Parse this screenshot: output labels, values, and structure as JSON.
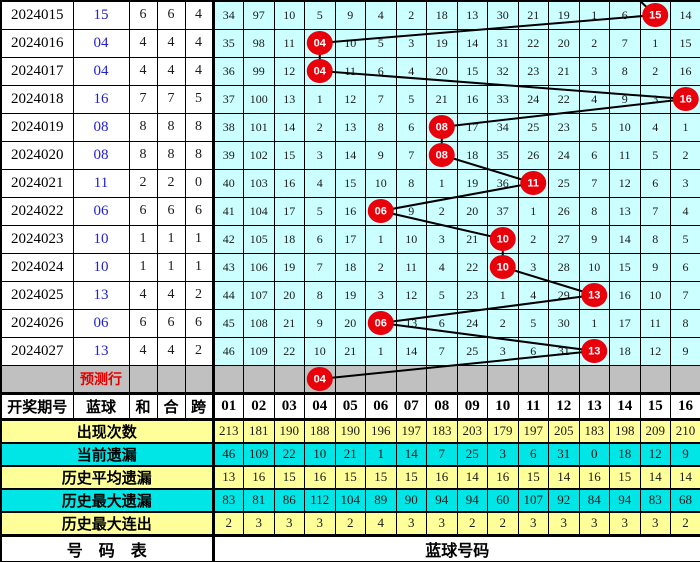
{
  "meta": {
    "grid_cell_bg": "#ccffff",
    "stat_yellow_bg": "#ffff99",
    "stat_cyan_bg": "#00e6e6",
    "prediction_row_bg": "#c0c0c0",
    "circle_red": "#e8000b",
    "ball_blue": "#2222cc",
    "trend_line_color": "#000000"
  },
  "columns": {
    "period": "开奖期号",
    "ball": "蓝球",
    "sum": "和",
    "he": "合",
    "span": "跨",
    "numbers": [
      "01",
      "02",
      "03",
      "04",
      "05",
      "06",
      "07",
      "08",
      "09",
      "10",
      "11",
      "12",
      "13",
      "14",
      "15",
      "16"
    ]
  },
  "main": {
    "top_entry_col": 14,
    "rows": [
      {
        "period": "2024015",
        "ball": "15",
        "ball_col": 15,
        "sum": "6",
        "he": "6",
        "span": "4",
        "cells": [
          "34",
          "97",
          "10",
          "5",
          "9",
          "4",
          "2",
          "18",
          "13",
          "30",
          "21",
          "19",
          "1",
          "6",
          "",
          "14"
        ]
      },
      {
        "period": "2024016",
        "ball": "04",
        "ball_col": 4,
        "sum": "4",
        "he": "4",
        "span": "4",
        "cells": [
          "35",
          "98",
          "11",
          "",
          "10",
          "5",
          "3",
          "19",
          "14",
          "31",
          "22",
          "20",
          "2",
          "7",
          "1",
          "15"
        ]
      },
      {
        "period": "2024017",
        "ball": "04",
        "ball_col": 4,
        "sum": "4",
        "he": "4",
        "span": "4",
        "cells": [
          "36",
          "99",
          "12",
          "",
          "11",
          "6",
          "4",
          "20",
          "15",
          "32",
          "23",
          "21",
          "3",
          "8",
          "2",
          "16"
        ]
      },
      {
        "period": "2024018",
        "ball": "16",
        "ball_col": 16,
        "sum": "7",
        "he": "7",
        "span": "5",
        "cells": [
          "37",
          "100",
          "13",
          "1",
          "12",
          "7",
          "5",
          "21",
          "16",
          "33",
          "24",
          "22",
          "4",
          "9",
          "3",
          ""
        ]
      },
      {
        "period": "2024019",
        "ball": "08",
        "ball_col": 8,
        "sum": "8",
        "he": "8",
        "span": "8",
        "cells": [
          "38",
          "101",
          "14",
          "2",
          "13",
          "8",
          "6",
          "",
          "17",
          "34",
          "25",
          "23",
          "5",
          "10",
          "4",
          "1"
        ]
      },
      {
        "period": "2024020",
        "ball": "08",
        "ball_col": 8,
        "sum": "8",
        "he": "8",
        "span": "8",
        "cells": [
          "39",
          "102",
          "15",
          "3",
          "14",
          "9",
          "7",
          "",
          "18",
          "35",
          "26",
          "24",
          "6",
          "11",
          "5",
          "2"
        ]
      },
      {
        "period": "2024021",
        "ball": "11",
        "ball_col": 11,
        "sum": "2",
        "he": "2",
        "span": "0",
        "cells": [
          "40",
          "103",
          "16",
          "4",
          "15",
          "10",
          "8",
          "1",
          "19",
          "36",
          "",
          "25",
          "7",
          "12",
          "6",
          "3"
        ]
      },
      {
        "period": "2024022",
        "ball": "06",
        "ball_col": 6,
        "sum": "6",
        "he": "6",
        "span": "6",
        "cells": [
          "41",
          "104",
          "17",
          "5",
          "16",
          "",
          "9",
          "2",
          "20",
          "37",
          "1",
          "26",
          "8",
          "13",
          "7",
          "4"
        ]
      },
      {
        "period": "2024023",
        "ball": "10",
        "ball_col": 10,
        "sum": "1",
        "he": "1",
        "span": "1",
        "cells": [
          "42",
          "105",
          "18",
          "6",
          "17",
          "1",
          "10",
          "3",
          "21",
          "",
          "2",
          "27",
          "9",
          "14",
          "8",
          "5"
        ]
      },
      {
        "period": "2024024",
        "ball": "10",
        "ball_col": 10,
        "sum": "1",
        "he": "1",
        "span": "1",
        "cells": [
          "43",
          "106",
          "19",
          "7",
          "18",
          "2",
          "11",
          "4",
          "22",
          "",
          "3",
          "28",
          "10",
          "15",
          "9",
          "6"
        ]
      },
      {
        "period": "2024025",
        "ball": "13",
        "ball_col": 13,
        "sum": "4",
        "he": "4",
        "span": "2",
        "cells": [
          "44",
          "107",
          "20",
          "8",
          "19",
          "3",
          "12",
          "5",
          "23",
          "1",
          "4",
          "29",
          "",
          "16",
          "10",
          "7"
        ]
      },
      {
        "period": "2024026",
        "ball": "06",
        "ball_col": 6,
        "sum": "6",
        "he": "6",
        "span": "6",
        "cells": [
          "45",
          "108",
          "21",
          "9",
          "20",
          "",
          "13",
          "6",
          "24",
          "2",
          "5",
          "30",
          "1",
          "17",
          "11",
          "8"
        ]
      },
      {
        "period": "2024027",
        "ball": "13",
        "ball_col": 13,
        "sum": "4",
        "he": "4",
        "span": "2",
        "cells": [
          "46",
          "109",
          "22",
          "10",
          "21",
          "1",
          "14",
          "7",
          "25",
          "3",
          "6",
          "31",
          "",
          "18",
          "12",
          "9"
        ]
      },
      {
        "period": "",
        "ball": "04",
        "ball_col": 4,
        "sum": "",
        "he": "",
        "span": "",
        "prediction": true,
        "label": "预测行",
        "cells": [
          "",
          "",
          "",
          "",
          "",
          "",
          "",
          "",
          "",
          "",
          "",
          "",
          "",
          "",
          "",
          ""
        ]
      }
    ]
  },
  "stats": {
    "rows": [
      {
        "label": "出现次数",
        "bg": "yellow",
        "values": [
          "213",
          "181",
          "190",
          "188",
          "190",
          "196",
          "197",
          "183",
          "203",
          "179",
          "197",
          "205",
          "183",
          "198",
          "209",
          "210"
        ]
      },
      {
        "label": "当前遗漏",
        "bg": "cyan",
        "values": [
          "46",
          "109",
          "22",
          "10",
          "21",
          "1",
          "14",
          "7",
          "25",
          "3",
          "6",
          "31",
          "0",
          "18",
          "12",
          "9"
        ]
      },
      {
        "label": "历史平均遗漏",
        "bg": "yellow",
        "values": [
          "13",
          "16",
          "15",
          "16",
          "15",
          "15",
          "15",
          "16",
          "14",
          "16",
          "15",
          "14",
          "16",
          "15",
          "14",
          "14"
        ]
      },
      {
        "label": "历史最大遗漏",
        "bg": "cyan",
        "values": [
          "83",
          "81",
          "86",
          "112",
          "104",
          "89",
          "90",
          "94",
          "94",
          "60",
          "107",
          "92",
          "84",
          "94",
          "83",
          "68"
        ]
      },
      {
        "label": "历史最大连出",
        "bg": "yellow",
        "values": [
          "2",
          "3",
          "3",
          "3",
          "2",
          "4",
          "3",
          "3",
          "2",
          "2",
          "3",
          "3",
          "3",
          "3",
          "3",
          "2"
        ]
      }
    ]
  },
  "footer": {
    "left": "号　码　表",
    "right": "蓝球号码"
  },
  "chart_data": {
    "type": "line",
    "x": [
      "2024015",
      "2024016",
      "2024017",
      "2024018",
      "2024019",
      "2024020",
      "2024021",
      "2024022",
      "2024023",
      "2024024",
      "2024025",
      "2024026",
      "2024027",
      "预测行"
    ],
    "series": [
      {
        "name": "蓝球",
        "values": [
          15,
          4,
          4,
          16,
          8,
          8,
          11,
          6,
          10,
          10,
          13,
          6,
          13,
          4
        ]
      }
    ],
    "ylim": [
      1,
      16
    ],
    "legend_position": "none",
    "grid": true,
    "stats_table": {
      "row_labels": [
        "出现次数",
        "当前遗漏",
        "历史平均遗漏",
        "历史最大遗漏",
        "历史最大连出"
      ],
      "column_labels": [
        "01",
        "02",
        "03",
        "04",
        "05",
        "06",
        "07",
        "08",
        "09",
        "10",
        "11",
        "12",
        "13",
        "14",
        "15",
        "16"
      ],
      "values": [
        [
          213,
          181,
          190,
          188,
          190,
          196,
          197,
          183,
          203,
          179,
          197,
          205,
          183,
          198,
          209,
          210
        ],
        [
          46,
          109,
          22,
          10,
          21,
          1,
          14,
          7,
          25,
          3,
          6,
          31,
          0,
          18,
          12,
          9
        ],
        [
          13,
          16,
          15,
          16,
          15,
          15,
          15,
          16,
          14,
          16,
          15,
          14,
          16,
          15,
          14,
          14
        ],
        [
          83,
          81,
          86,
          112,
          104,
          89,
          90,
          94,
          94,
          60,
          107,
          92,
          84,
          94,
          83,
          68
        ],
        [
          2,
          3,
          3,
          3,
          2,
          4,
          3,
          3,
          2,
          2,
          3,
          3,
          3,
          3,
          3,
          2
        ]
      ]
    }
  }
}
